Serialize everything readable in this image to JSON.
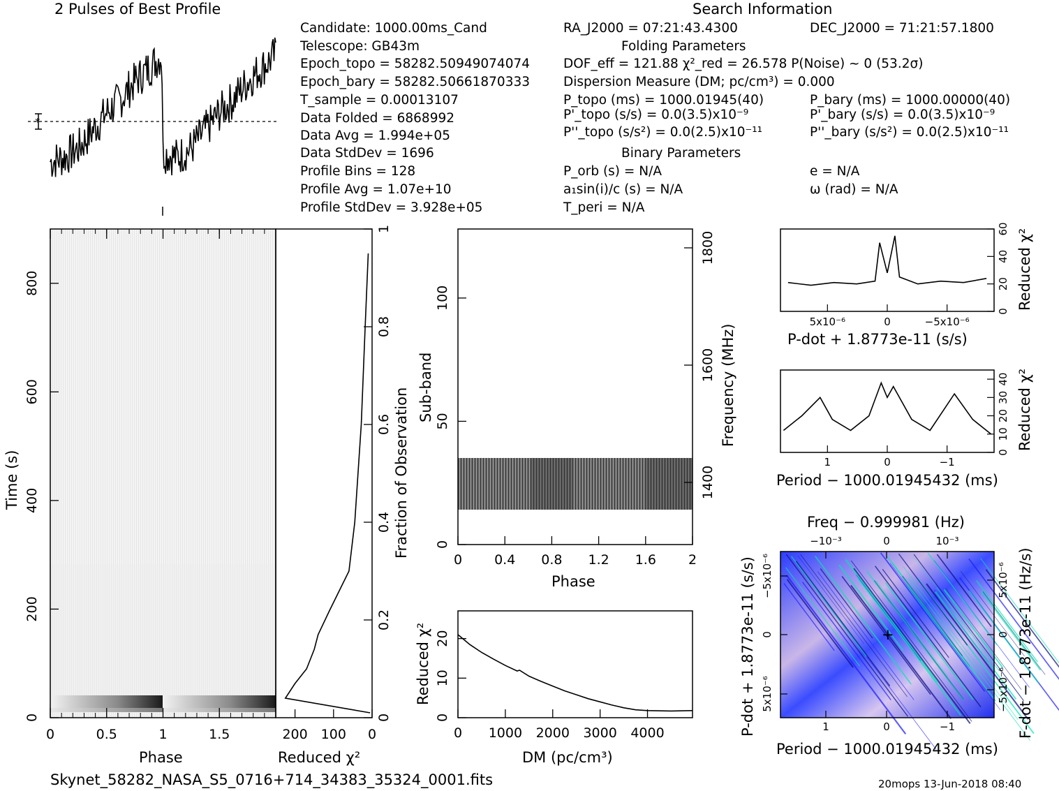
{
  "header": {
    "profile_title": "2 Pulses of Best Profile",
    "search_title": "Search Information"
  },
  "info_left": [
    "Candidate:  1000.00ms_Cand",
    "Telescope:  GB43m",
    "Epoch_topo = 58282.50949074074",
    "Epoch_bary = 58282.50661870333",
    "T_sample        =  0.00013107",
    "Data Folded     =  6868992",
    "Data Avg        =  1.994e+05",
    "Data StdDev     =  1696",
    "Profile Bins    =  128",
    "Profile Avg     =  1.07e+10",
    "Profile StdDev  =  3.928e+05"
  ],
  "info_mid": {
    "ra": "RA_J2000 = 07:21:43.4300",
    "dec": "DEC_J2000 = 71:21:57.1800",
    "folding_title": "Folding Parameters",
    "dof": "DOF_eff = 121.88  χ²_red = 26.578  P(Noise) ~ 0   (53.2σ)",
    "dm": "Dispersion Measure (DM; pc/cm³) = 0.000",
    "p_topo": "P_topo (ms) =  1000.01945(40)",
    "p_bary": "P_bary (ms) =  1000.00000(40)",
    "pd_topo": "P'_topo (s/s) = 0.0(3.5)x10⁻⁹",
    "pd_bary": "P'_bary (s/s) = 0.0(3.5)x10⁻⁹",
    "pdd_topo": "P''_topo (s/s²) = 0.0(2.5)x10⁻¹¹",
    "pdd_bary": "P''_bary (s/s²) = 0.0(2.5)x10⁻¹¹",
    "binary_title": "Binary Parameters",
    "p_orb": "P_orb (s) = N/A",
    "ecc": "e = N/A",
    "a1sini": "a₁sin(i)/c (s) = N/A",
    "omega": "ω (rad) = N/A",
    "t_peri": "T_peri = N/A"
  },
  "footer": {
    "filename": "Skynet_58282_NASA_S5_0716+714_34383_35324_0001.fits",
    "stamp": "20mops 13-Jun-2018 08:40"
  },
  "colors": {
    "line": "#000000",
    "grid_low": "#1a1aff",
    "grid_high": "#00e6b0",
    "grid_mid": "#c8b0e0"
  },
  "chart_data": [
    {
      "type": "line",
      "name": "profile",
      "title": "2 Pulses of Best Profile",
      "xlabel": "",
      "ylabel": "",
      "x": [
        0,
        0.125,
        0.25,
        0.375,
        0.5,
        0.625,
        0.75,
        0.875,
        0.99,
        1.0,
        1.125,
        1.25,
        1.375,
        1.5,
        1.625,
        1.75,
        1.875,
        2.0
      ],
      "y": [
        -0.6,
        -0.5,
        -0.3,
        0.1,
        0.5,
        0.8,
        1.2,
        1.5,
        1.8,
        -0.4,
        -0.5,
        -0.3,
        0.1,
        0.5,
        0.8,
        1.2,
        1.5,
        1.8
      ],
      "xlim": [
        0,
        2
      ]
    },
    {
      "type": "heatmap",
      "name": "time-phase",
      "xlabel": "Phase",
      "ylabel": "Time (s)",
      "xticks": [
        "0",
        "0.5",
        "1",
        "1.5"
      ],
      "yticks": [
        "0",
        "200",
        "400",
        "600",
        "800"
      ],
      "xlim": [
        0,
        2
      ],
      "ylim": [
        0,
        900
      ]
    },
    {
      "type": "line",
      "name": "time-chi2",
      "xlabel": "Reduced χ²",
      "ylabel": "Fraction of Observation",
      "xticks": [
        "200",
        "100",
        "0"
      ],
      "yticks": [
        "0",
        "0.2",
        "0.4",
        "0.6",
        "0.8",
        "1"
      ],
      "x": [
        5,
        225,
        200,
        170,
        150,
        140,
        110,
        85,
        60,
        45,
        28,
        18,
        10
      ],
      "y": [
        0.01,
        0.04,
        0.07,
        0.1,
        0.14,
        0.17,
        0.22,
        0.26,
        0.3,
        0.4,
        0.6,
        0.8,
        0.95
      ],
      "xlim": [
        250,
        0
      ],
      "ylim": [
        0,
        1
      ]
    },
    {
      "type": "heatmap",
      "name": "subband-phase",
      "xlabel": "Phase",
      "ylabel": "Sub-band",
      "y2label": "Frequency (MHz)",
      "xticks": [
        "0",
        "0.4",
        "0.8",
        "1.2",
        "1.6",
        "2"
      ],
      "yticks": [
        "0",
        "50",
        "100"
      ],
      "y2ticks": [
        "1400",
        "1600",
        "1800"
      ],
      "occupied_subbands": [
        14,
        35
      ],
      "xlim": [
        0,
        2
      ],
      "ylim": [
        0,
        128
      ]
    },
    {
      "type": "line",
      "name": "dm-chi2",
      "xlabel": "DM (pc/cm³)",
      "ylabel": "Reduced χ²",
      "xticks": [
        "0",
        "1000",
        "2000",
        "3000",
        "4000"
      ],
      "yticks": [
        "0",
        "10",
        "20"
      ],
      "x": [
        0,
        250,
        500,
        750,
        1000,
        1250,
        1300,
        1500,
        1750,
        2000,
        2250,
        2500,
        2750,
        3000,
        3250,
        3500,
        3750,
        4000,
        4500,
        4950
      ],
      "y": [
        21,
        18.5,
        16.5,
        14.8,
        13.2,
        11.8,
        12,
        10.5,
        9.2,
        8,
        6.8,
        5.8,
        4.8,
        4,
        3.2,
        2.5,
        2,
        1.8,
        1.7,
        1.8
      ],
      "xlim": [
        0,
        4950
      ],
      "ylim": [
        0,
        27
      ]
    },
    {
      "type": "line",
      "name": "pdot-chi2",
      "xlabel": "P-dot + 1.8773e-11 (s/s)",
      "ylabel": "Reduced χ²",
      "xticks": [
        "5x10⁻⁶",
        "0",
        "−5x10⁻⁶"
      ],
      "yticks": [
        "0",
        "20",
        "40",
        "60"
      ],
      "x": [
        -0.65,
        -0.5,
        -0.35,
        -0.2,
        -0.08,
        -0.05,
        0,
        0.05,
        0.08,
        0.2,
        0.35,
        0.5,
        0.65
      ],
      "y": [
        24,
        21,
        22,
        20,
        25,
        55,
        28,
        50,
        22,
        20,
        21,
        19,
        21
      ],
      "ylim": [
        0,
        60
      ]
    },
    {
      "type": "line",
      "name": "period-chi2",
      "xlabel": "Period − 1000.01945432 (ms)",
      "ylabel": "Reduced χ²",
      "xticks": [
        "1",
        "0",
        "−1"
      ],
      "yticks": [
        "0",
        "10",
        "20",
        "30",
        "40"
      ],
      "x": [
        1.7,
        1.4,
        1.1,
        0.9,
        0.6,
        0.3,
        0.1,
        0,
        -0.1,
        -0.4,
        -0.7,
        -0.9,
        -1.1,
        -1.4,
        -1.7
      ],
      "y": [
        12,
        20,
        30,
        18,
        12,
        20,
        38,
        30,
        36,
        18,
        12,
        22,
        32,
        18,
        10
      ],
      "ylim": [
        0,
        45
      ]
    },
    {
      "type": "heatmap",
      "name": "period-pdot",
      "title": "Freq − 0.999981 (Hz)",
      "xlabel": "Period − 1000.01945432 (ms)",
      "ylabel": "P-dot + 1.8773e-11 (s/s)",
      "y2label": "F-dot − 1.8773e-11 (Hz/s)",
      "xticks": [
        "1",
        "0",
        "−1"
      ],
      "x2ticks": [
        "−10⁻³",
        "0",
        "10⁻³"
      ],
      "yticks": [
        "5x10⁻⁶",
        "0",
        "−5x10⁻⁶"
      ],
      "y2ticks": [
        "−5x10⁻⁶",
        "0",
        "5x10⁻⁶"
      ]
    }
  ]
}
